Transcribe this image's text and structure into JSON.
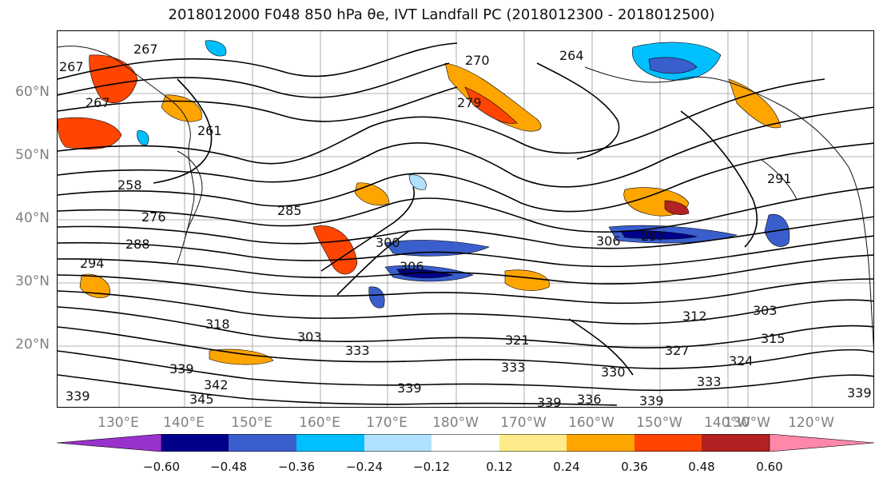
{
  "title": "2018012000 F048 850 hPa θe, IVT Landfall PC (2018012300 - 2018012500)",
  "map": {
    "lat_labels": [
      "60°N",
      "50°N",
      "40°N",
      "30°N",
      "20°N"
    ],
    "lon_labels": [
      "130°E",
      "140°E",
      "150°E",
      "160°E",
      "170°E",
      "180°W",
      "170°W",
      "160°W",
      "150°W",
      "140°W",
      "130°W",
      "120°W"
    ],
    "contour_labels": [
      "267",
      "267",
      "264",
      "270",
      "279",
      "267",
      "261",
      "258",
      "276",
      "285",
      "288",
      "294",
      "300",
      "306",
      "306",
      "297",
      "291",
      "318",
      "303",
      "312",
      "303",
      "315",
      "324",
      "327",
      "333",
      "330",
      "339",
      "339",
      "336",
      "339",
      "342",
      "345",
      "339",
      "321",
      "333",
      "333",
      "339",
      "339"
    ]
  },
  "colorbar": {
    "tick_labels": [
      "−0.60",
      "−0.48",
      "−0.36",
      "−0.24",
      "−0.12",
      "0.12",
      "0.24",
      "0.36",
      "0.48",
      "0.60"
    ],
    "colors": [
      "#9932cc",
      "#00008b",
      "#3a5fcd",
      "#00bfff",
      "#b0e2ff",
      "#ffffff",
      "#ffeb8a",
      "#ffa500",
      "#ff4500",
      "#b22222",
      "#ff88aa"
    ]
  }
}
